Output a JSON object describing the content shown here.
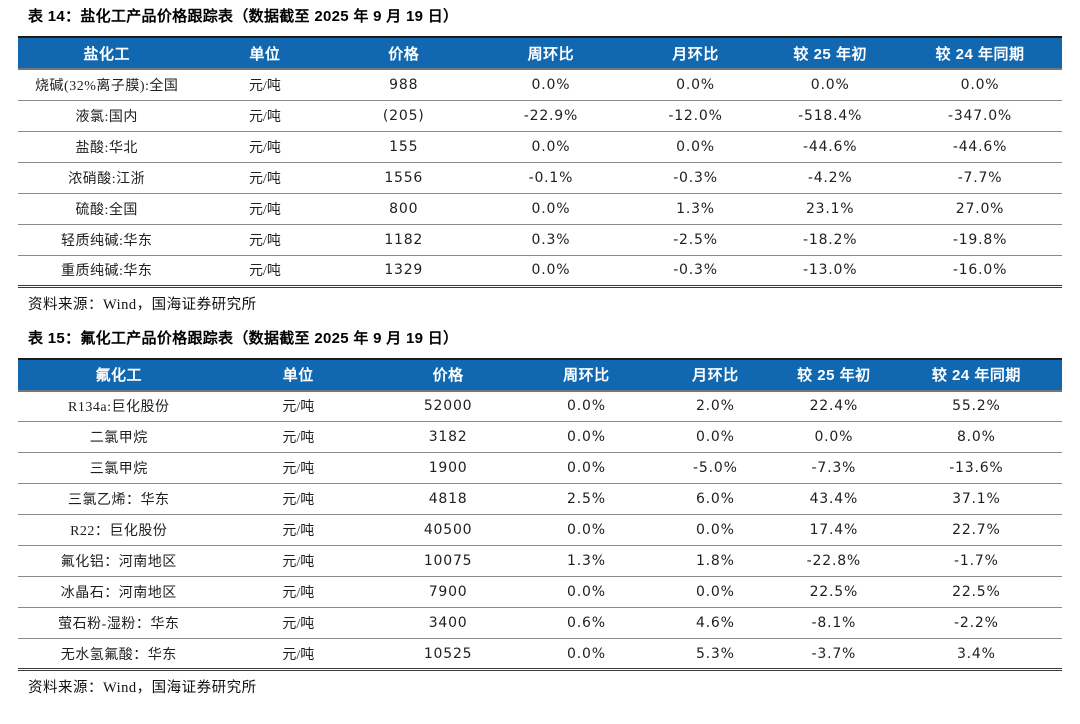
{
  "colors": {
    "header_bg": "#1168b1",
    "header_text": "#ffffff",
    "row_line": "#8a8a8a",
    "table_bottom_line": "#3a3a3a",
    "negative_price": "#fb3b3b",
    "text": "#1f1f1f"
  },
  "tables": [
    {
      "title": "表 14：盐化工产品价格跟踪表（数据截至 2025 年 9 月 19 日）",
      "columns": [
        "盐化工",
        "单位",
        "价格",
        "周环比",
        "月环比",
        "较 25 年初",
        "较 24 年同期"
      ],
      "rows": [
        [
          "烧碱(32%离子膜):全国",
          "元/吨",
          "988",
          "0.0%",
          "0.0%",
          "0.0%",
          "0.0%"
        ],
        [
          "液氯:国内",
          "元/吨",
          "(205)",
          "-22.9%",
          "-12.0%",
          "-518.4%",
          "-347.0%"
        ],
        [
          "盐酸:华北",
          "元/吨",
          "155",
          "0.0%",
          "0.0%",
          "-44.6%",
          "-44.6%"
        ],
        [
          "浓硝酸:江浙",
          "元/吨",
          "1556",
          "-0.1%",
          "-0.3%",
          "-4.2%",
          "-7.7%"
        ],
        [
          "硫酸:全国",
          "元/吨",
          "800",
          "0.0%",
          "1.3%",
          "23.1%",
          "27.0%"
        ],
        [
          "轻质纯碱:华东",
          "元/吨",
          "1182",
          "0.3%",
          "-2.5%",
          "-18.2%",
          "-19.8%"
        ],
        [
          "重质纯碱:华东",
          "元/吨",
          "1329",
          "0.0%",
          "-0.3%",
          "-13.0%",
          "-16.0%"
        ]
      ],
      "source": "资料来源：Wind，国海证券研究所"
    },
    {
      "title": "表 15：氟化工产品价格跟踪表（数据截至 2025 年 9 月 19 日）",
      "columns": [
        "氟化工",
        "单位",
        "价格",
        "周环比",
        "月环比",
        "较 25 年初",
        "较 24 年同期"
      ],
      "rows": [
        [
          "R134a:巨化股份",
          "元/吨",
          "52000",
          "0.0%",
          "2.0%",
          "22.4%",
          "55.2%"
        ],
        [
          "二氯甲烷",
          "元/吨",
          "3182",
          "0.0%",
          "0.0%",
          "0.0%",
          "8.0%"
        ],
        [
          "三氯甲烷",
          "元/吨",
          "1900",
          "0.0%",
          "-5.0%",
          "-7.3%",
          "-13.6%"
        ],
        [
          "三氯乙烯：华东",
          "元/吨",
          "4818",
          "2.5%",
          "6.0%",
          "43.4%",
          "37.1%"
        ],
        [
          "R22：巨化股份",
          "元/吨",
          "40500",
          "0.0%",
          "0.0%",
          "17.4%",
          "22.7%"
        ],
        [
          "氟化铝：河南地区",
          "元/吨",
          "10075",
          "1.3%",
          "1.8%",
          "-22.8%",
          "-1.7%"
        ],
        [
          "冰晶石：河南地区",
          "元/吨",
          "7900",
          "0.0%",
          "0.0%",
          "22.5%",
          "22.5%"
        ],
        [
          "萤石粉-湿粉：华东",
          "元/吨",
          "3400",
          "0.6%",
          "4.6%",
          "-8.1%",
          "-2.2%"
        ],
        [
          "无水氢氟酸：华东",
          "元/吨",
          "10525",
          "0.0%",
          "5.3%",
          "-3.7%",
          "3.4%"
        ]
      ],
      "source": "资料来源：Wind，国海证券研究所"
    }
  ]
}
